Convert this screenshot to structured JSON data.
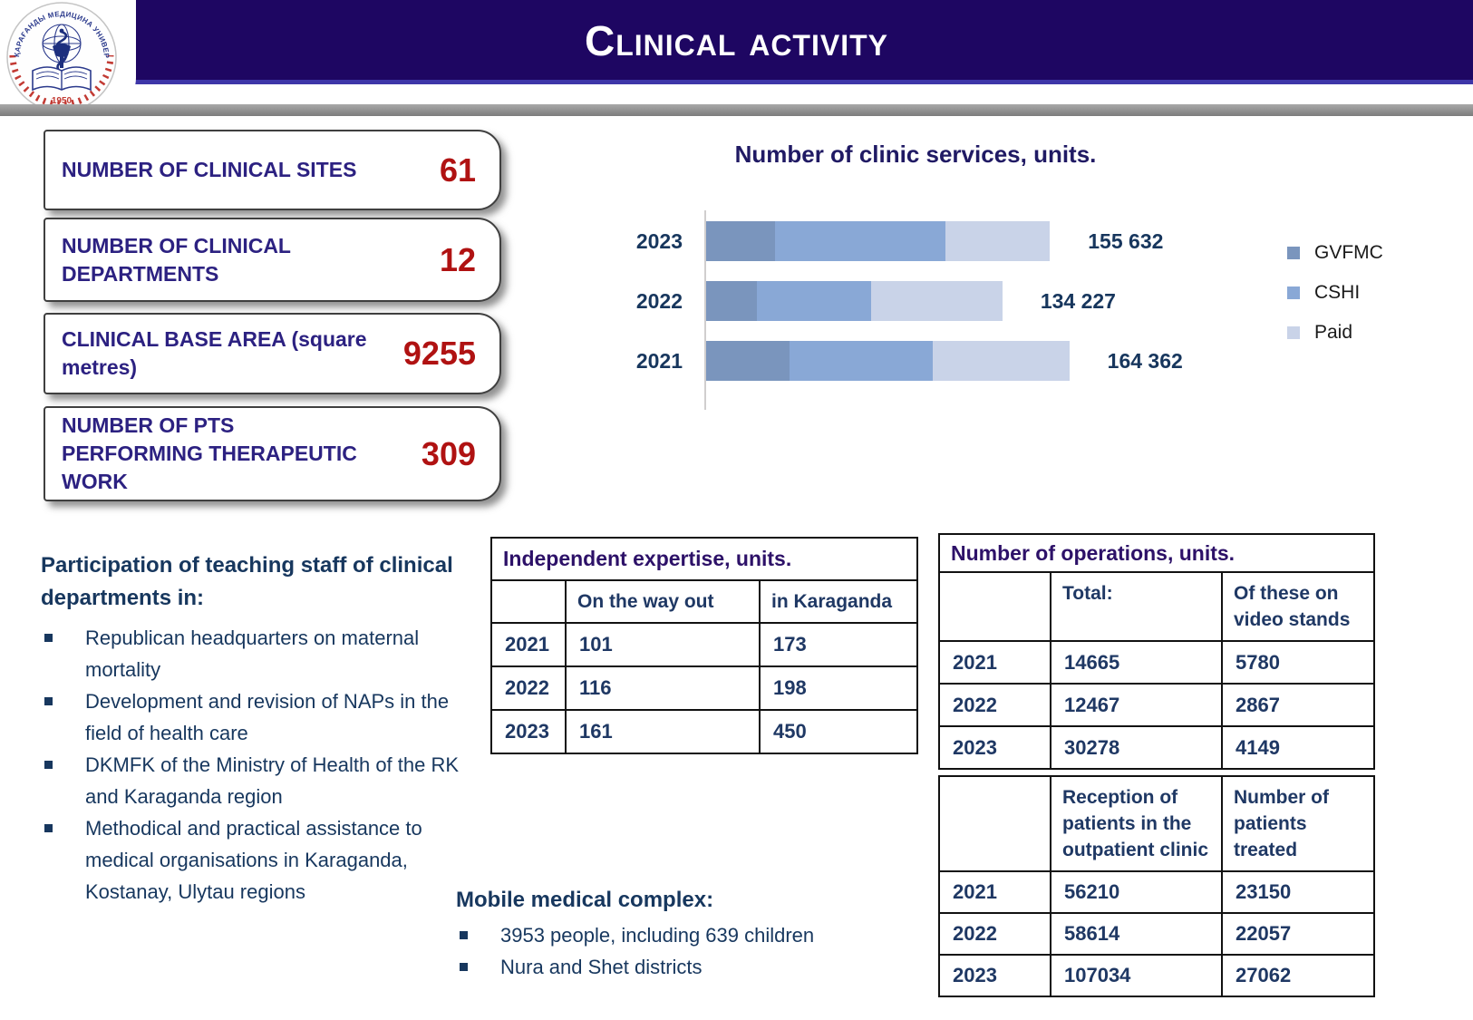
{
  "header": {
    "title": "Clinical activity",
    "logo": {
      "arc_text": "ҚАРАҒАНДЫ МЕДИЦИНА УНИВЕРСИТЕТІ",
      "year": "1950"
    }
  },
  "colors": {
    "header_bar": "#1e0662",
    "accent_red": "#b01212",
    "navy_text": "#17375e",
    "table_title": "#2d1168"
  },
  "stat_boxes": [
    {
      "label": "NUMBER OF CLINICAL SITES",
      "value": "61"
    },
    {
      "label": "NUMBER OF CLINICAL DEPARTMENTS",
      "value": "12"
    },
    {
      "label": "CLINICAL BASE AREA (square metres)",
      "value": "9255"
    },
    {
      "label": "NUMBER OF PTS PERFORMING THERAPEUTIC WORK",
      "value": "309"
    }
  ],
  "chart_data": {
    "type": "bar",
    "subtype": "horizontal-stacked",
    "title": "Number of clinic services, units.",
    "categories": [
      "2023",
      "2022",
      "2021"
    ],
    "totals": [
      "155 632",
      "134 227",
      "164 362"
    ],
    "totals_numeric": [
      155632,
      134227,
      164362
    ],
    "series": [
      {
        "name": "GVFMC",
        "color": "#7a95bd",
        "values": [
          31700,
          23600,
          38300
        ]
      },
      {
        "name": "CSHI",
        "color": "#89a8d6",
        "values": [
          77000,
          51400,
          64400
        ]
      },
      {
        "name": "Paid",
        "color": "#c9d3e8",
        "values": [
          46932,
          59227,
          61662
        ]
      }
    ],
    "legend_position": "right",
    "grid": false
  },
  "staff_participation": {
    "heading": "Participation of teaching staff of clinical departments in:",
    "items": [
      "Republican headquarters on maternal mortality",
      "Development and revision of NAPs in the field of health care",
      "DKMFK of the Ministry of Health of the RK and Karaganda region",
      "Methodical and practical assistance to medical organisations in Karaganda, Kostanay, Ulytau regions"
    ]
  },
  "expertise_table": {
    "title": "Independent expertise, units.",
    "columns": [
      "",
      "On the way out",
      "in Karaganda"
    ],
    "rows": [
      {
        "year": "2021",
        "out": "101",
        "karaganda": "173"
      },
      {
        "year": "2022",
        "out": "116",
        "karaganda": "198"
      },
      {
        "year": "2023",
        "out": "161",
        "karaganda": "450"
      }
    ]
  },
  "operations_table": {
    "title": "Number of operations, units.",
    "columns": [
      "",
      "Total:",
      "Of these on video stands"
    ],
    "rows": [
      {
        "year": "2021",
        "total": "14665",
        "video": "5780"
      },
      {
        "year": "2022",
        "total": "12467",
        "video": "2867"
      },
      {
        "year": "2023",
        "total": "30278",
        "video": "4149"
      }
    ]
  },
  "patients_table": {
    "columns": [
      "",
      "Reception of patients in the outpatient clinic",
      "Number of patients treated"
    ],
    "rows": [
      {
        "year": "2021",
        "reception": "56210",
        "treated": "23150"
      },
      {
        "year": "2022",
        "reception": "58614",
        "treated": "22057"
      },
      {
        "year": "2023",
        "reception": "107034",
        "treated": "27062"
      }
    ]
  },
  "mobile_complex": {
    "heading": "Mobile medical complex:",
    "items": [
      "3953 people, including 639 children",
      "Nura and Shet districts"
    ]
  }
}
